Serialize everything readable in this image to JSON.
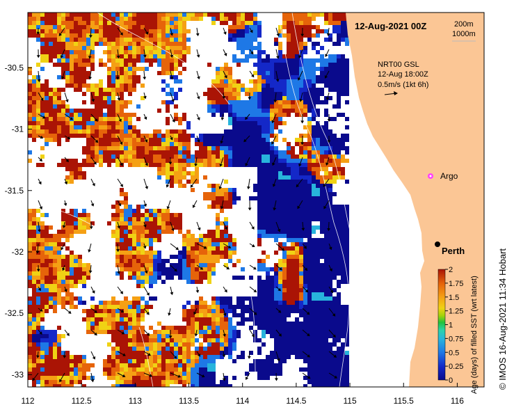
{
  "map": {
    "title": "12-Aug-2021 00Z",
    "contours": [
      "200m",
      "1000m"
    ],
    "current_info": [
      "NRT00 GSL",
      "12-Aug 18:00Z",
      "0.5m/s (1kt 6h)"
    ],
    "places": [
      {
        "name": "Perth",
        "lon": 115.86,
        "lat": -31.95,
        "marker": "city"
      },
      {
        "name": "Argo",
        "lon": 115.73,
        "lat": -31.45,
        "marker": "argo-float"
      }
    ],
    "x_axis": {
      "ticks": [
        112,
        112.5,
        113,
        113.5,
        114,
        114.5,
        115,
        115.5,
        116
      ],
      "labels": [
        "112",
        "112.5",
        "113",
        "113.5",
        "114",
        "114.5",
        "115",
        "115.5",
        "116"
      ]
    },
    "y_axis": {
      "ticks": [
        -30.5,
        -31,
        -31.5,
        -32,
        -32.5,
        -33
      ],
      "labels": [
        "-30.5",
        "-31",
        "-31.5",
        "-32",
        "-32.5",
        "-33"
      ]
    },
    "lon_range": [
      112,
      116.25
    ],
    "lat_range": [
      -33.1,
      -30.05
    ],
    "colorbar": {
      "label": "Age (days) of filled SST (wrt latest)",
      "ticks": [
        "0",
        "0.25",
        "0.5",
        "0.75",
        "1",
        "1.25",
        "1.5",
        "1.75",
        "2"
      ],
      "range": [
        0,
        2
      ],
      "colors": [
        "#0a0a8c",
        "#1428c8",
        "#1e78e6",
        "#28b4dc",
        "#2ad2aa",
        "#22c23c",
        "#a0d20a",
        "#f0d214",
        "#f5a014",
        "#e6640a",
        "#aa1405"
      ]
    },
    "credit": "© IMOS 16-Aug-2021 11:34 Hobart",
    "colors": {
      "land": "#fbc695",
      "nodata": "#ffffff",
      "ocean_fresh": "#0a0a8c"
    }
  }
}
